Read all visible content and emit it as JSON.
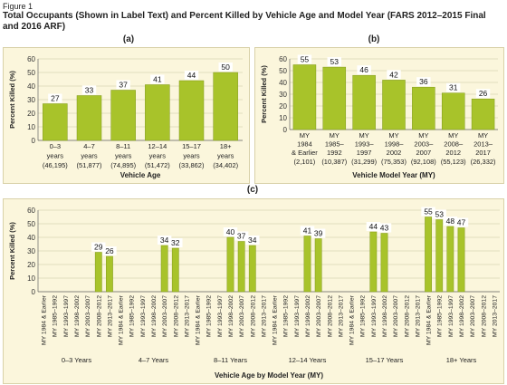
{
  "figure_label": "Figure 1",
  "title": "Total Occupants (Shown in Label Text) and Percent Killed by Vehicle Age and Model Year (FARS 2012–2015 Final and 2016 ARF)",
  "colors": {
    "bar": "#a8c32a",
    "bar_stroke": "#7f9a1a",
    "panel_bg": "#fbf6dc",
    "grid": "#c9c3a0",
    "label_box": "#ffffff"
  },
  "chart_data": [
    {
      "id": "a",
      "panel_label": "(a)",
      "type": "bar",
      "ylabel": "Percent Killed (%)",
      "xlabel": "Vehicle Age",
      "ylim": [
        0,
        60
      ],
      "yticks": [
        0,
        10,
        20,
        30,
        40,
        50,
        60
      ],
      "categories": [
        [
          "0–3",
          "years",
          "(46,195)"
        ],
        [
          "4–7",
          "years",
          "(51,877)"
        ],
        [
          "8–11",
          "years",
          "(74,895)"
        ],
        [
          "12–14",
          "years",
          "(51,472)"
        ],
        [
          "15–17",
          "years",
          "(33,862)"
        ],
        [
          "18+",
          "years",
          "(34,402)"
        ]
      ],
      "values": [
        27,
        33,
        37,
        41,
        44,
        50
      ],
      "labels": [
        "27",
        "33",
        "37",
        "41",
        "44",
        "50"
      ]
    },
    {
      "id": "b",
      "panel_label": "(b)",
      "type": "bar",
      "ylabel": "Percent Killed (%)",
      "xlabel": "Vehicle Model Year (MY)",
      "ylim": [
        0,
        60
      ],
      "yticks": [
        0,
        10,
        20,
        30,
        40,
        50,
        60
      ],
      "categories": [
        [
          "MY",
          "1984",
          "& Earlier",
          "(2,101)"
        ],
        [
          "MY",
          "1985–",
          "1992",
          "(10,387)"
        ],
        [
          "MY",
          "1993–",
          "1997",
          "(31,299)"
        ],
        [
          "MY",
          "1998–",
          "2002",
          "(75,353)"
        ],
        [
          "MY",
          "2003–",
          "2007",
          "(92,108)"
        ],
        [
          "MY",
          "2008–",
          "2012",
          "(55,123)"
        ],
        [
          "MY",
          "2013–",
          "2017",
          "(26,332)"
        ]
      ],
      "values": [
        55,
        53,
        46,
        42,
        36,
        31,
        26
      ],
      "labels": [
        "55",
        "53",
        "46",
        "42",
        "36",
        "31",
        "26"
      ]
    },
    {
      "id": "c",
      "panel_label": "(c)",
      "type": "bar",
      "ylabel": "Percent Killed (%)",
      "xlabel": "Vehicle Age by Model Year (MY)",
      "ylim": [
        0,
        60
      ],
      "yticks": [
        0,
        10,
        20,
        30,
        40,
        50,
        60
      ],
      "my_labels": [
        "MY 1984 & Earlier",
        "MY 1985–1992",
        "MY 1993–1997",
        "MY 1998–2002",
        "MY 2003–2007",
        "MY 2008–2012",
        "MY 2013–2017"
      ],
      "groups": [
        {
          "name": "0–3 Years",
          "values": [
            null,
            null,
            null,
            null,
            null,
            29,
            26
          ],
          "labels": [
            "",
            "",
            "",
            "",
            "",
            "29",
            "26"
          ]
        },
        {
          "name": "4–7 Years",
          "values": [
            null,
            null,
            null,
            null,
            34,
            32,
            null
          ],
          "labels": [
            "",
            "",
            "",
            "",
            "34",
            "32",
            ""
          ]
        },
        {
          "name": "8–11 Years",
          "values": [
            null,
            null,
            null,
            40,
            37,
            34,
            null
          ],
          "labels": [
            "",
            "",
            "",
            "40",
            "37",
            "34",
            ""
          ]
        },
        {
          "name": "12–14 Years",
          "values": [
            null,
            null,
            null,
            41,
            39,
            null,
            null
          ],
          "labels": [
            "",
            "",
            "",
            "41",
            "39",
            "",
            ""
          ]
        },
        {
          "name": "15–17 Years",
          "values": [
            null,
            null,
            44,
            43,
            null,
            null,
            null
          ],
          "labels": [
            "",
            "",
            "44",
            "43",
            "",
            "",
            ""
          ]
        },
        {
          "name": "18+ Years",
          "values": [
            55,
            53,
            48,
            47,
            null,
            null,
            null
          ],
          "labels": [
            "55",
            "53",
            "48",
            "47",
            "",
            "",
            ""
          ]
        }
      ]
    }
  ]
}
